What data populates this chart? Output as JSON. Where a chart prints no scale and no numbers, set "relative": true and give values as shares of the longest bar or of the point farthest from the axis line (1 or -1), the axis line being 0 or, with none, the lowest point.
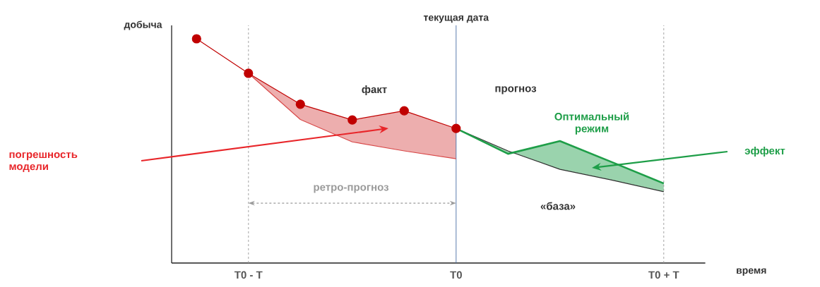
{
  "chart_data": {
    "type": "line",
    "relative": true,
    "xlabel": "время",
    "ylabel": "добыча",
    "categories": [
      null,
      "T0 - T",
      null,
      null,
      null,
      "T0",
      null,
      null,
      null,
      "T0 + T"
    ],
    "series": [
      {
        "color": "#c00000",
        "marker": "circle",
        "values": [
          1.0,
          0.846,
          0.708,
          0.638,
          0.679,
          0.6,
          null,
          null,
          null,
          null
        ]
      },
      {
        "color": "#d84a4a",
        "values": [
          null,
          0.846,
          0.64,
          0.54,
          0.5,
          0.465,
          null,
          null,
          null,
          null
        ],
        "lower": [
          null,
          0.846,
          0.64,
          0.54,
          0.5,
          0.465,
          null,
          null,
          null,
          null
        ],
        "upper": [
          null,
          0.846,
          0.708,
          0.638,
          0.679,
          0.6,
          null,
          null,
          null,
          null
        ]
      },
      {
        "color": "#2f2f2f",
        "values": [
          null,
          null,
          null,
          null,
          null,
          0.6,
          0.5,
          0.418,
          0.37,
          0.318
        ]
      },
      {
        "color": "#1e9e48",
        "values": [
          null,
          null,
          null,
          null,
          null,
          0.6,
          0.487,
          0.544,
          0.45,
          0.355
        ],
        "lower": [
          null,
          null,
          null,
          null,
          null,
          0.6,
          0.5,
          0.418,
          0.37,
          0.318
        ],
        "upper": [
          null,
          null,
          null,
          null,
          null,
          0.6,
          0.487,
          0.544,
          0.45,
          0.355
        ]
      }
    ],
    "ref_lines": [
      {
        "axis": "x",
        "value": "T0 - T",
        "color": "#9a9a9a",
        "line_style": "dashed"
      },
      {
        "axis": "x",
        "value": "T0",
        "label": "текущая дата",
        "color": "#4a6fa5",
        "line_style": "solid"
      },
      {
        "axis": "x",
        "value": "T0 + T",
        "color": "#9a9a9a",
        "line_style": "dashed"
      }
    ],
    "annotations": [
      "погрешность модели",
      "эффект",
      "ретро-прогноз",
      "прогноз",
      "факт",
      "Оптимальный режим",
      "«база»"
    ]
  }
}
